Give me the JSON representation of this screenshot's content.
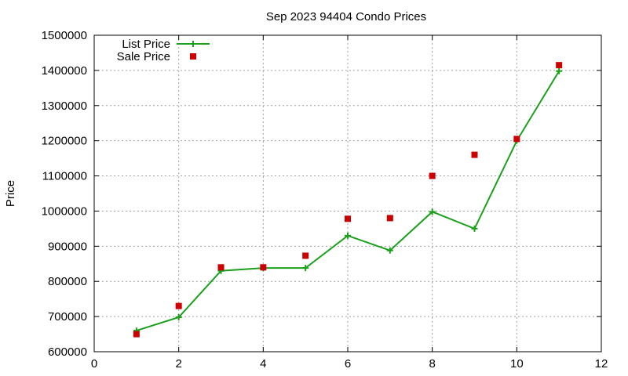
{
  "chart_data": {
    "type": "line",
    "title": "Sep 2023 94404 Condo Prices",
    "xlabel": "",
    "ylabel": "Price",
    "xlim": [
      0,
      12
    ],
    "ylim": [
      600000,
      1500000
    ],
    "x_ticks": [
      0,
      2,
      4,
      6,
      8,
      10,
      12
    ],
    "y_ticks": [
      600000,
      700000,
      800000,
      900000,
      1000000,
      1100000,
      1200000,
      1300000,
      1400000,
      1500000
    ],
    "grid": true,
    "legend_position": "top-left",
    "series": [
      {
        "name": "List Price",
        "style": "line-points",
        "marker": "plus",
        "color": "#1aa01a",
        "x": [
          1,
          2,
          3,
          4,
          5,
          6,
          7,
          8,
          9,
          10,
          11
        ],
        "values": [
          660000,
          698000,
          830000,
          838000,
          838000,
          930000,
          888000,
          998000,
          950000,
          1200000,
          1398000
        ]
      },
      {
        "name": "Sale Price",
        "style": "points",
        "marker": "square",
        "color": "#cc0000",
        "x": [
          1,
          2,
          3,
          4,
          5,
          6,
          7,
          8,
          9,
          10,
          11
        ],
        "values": [
          650000,
          730000,
          840000,
          840000,
          873000,
          978000,
          980000,
          1100000,
          1160000,
          1205000,
          1415000
        ]
      }
    ]
  }
}
